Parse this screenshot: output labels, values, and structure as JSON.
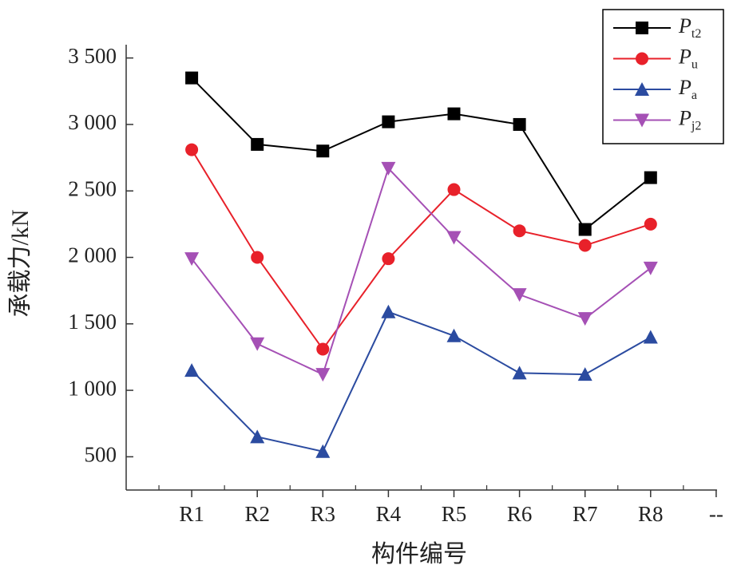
{
  "chart_data": {
    "type": "line",
    "xlabel": "构件编号",
    "ylabel": "承载力/kN",
    "categories": [
      "R1",
      "R2",
      "R3",
      "R4",
      "R5",
      "R6",
      "R7",
      "R8",
      "--"
    ],
    "series": [
      {
        "name": "Pt2",
        "color": "#000000",
        "marker": "square",
        "values": [
          3350,
          2850,
          2800,
          3020,
          3080,
          3000,
          2210,
          2600,
          null
        ]
      },
      {
        "name": "Pu",
        "color": "#e8212a",
        "marker": "circle",
        "values": [
          2810,
          2000,
          1310,
          1990,
          2510,
          2200,
          2090,
          2250,
          null
        ]
      },
      {
        "name": "Pa",
        "color": "#2b4ba0",
        "marker": "triangle-up",
        "values": [
          1150,
          650,
          540,
          1590,
          1410,
          1130,
          1120,
          1400,
          null
        ]
      },
      {
        "name": "Pj2",
        "color": "#a550b5",
        "marker": "triangle-down",
        "values": [
          1990,
          1350,
          1120,
          2670,
          2150,
          1720,
          1540,
          1920,
          null
        ]
      }
    ],
    "ylim": [
      250,
      3600
    ],
    "yticks": [
      500,
      {
        "value": 1000,
        "label": "1 000"
      },
      {
        "value": 1500,
        "label": "1 500"
      },
      {
        "value": 2000,
        "label": "2 000"
      },
      {
        "value": 2500,
        "label": "2 500"
      },
      {
        "value": 3000,
        "label": "3 000"
      },
      {
        "value": 3500,
        "label": "3 500"
      }
    ],
    "legend": "upper right"
  }
}
